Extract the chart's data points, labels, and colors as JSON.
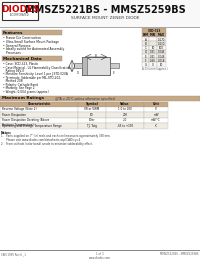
{
  "title_main": "MMSZ5221BS - MMSZ5259BS",
  "subtitle": "SURFACE MOUNT ZENER DIODE",
  "features_title": "Features",
  "features": [
    "Planar Die Construction",
    "Ultra-Small Surface Mount Package",
    "General Purpose",
    "Ideally suited for Automated Assembly\n    Processes"
  ],
  "mech_title": "Mechanical Data",
  "mech_items": [
    "Case: SOD-323, Plastic",
    "Case Material - UL Flammability Classification\n    Rating 94V-0",
    "Moisture Sensitivity: Level 1 per J-STD-020A",
    "Terminals: Solderable per MIL-STD-202,\n    Method 208",
    "Polarity: Cathode Band",
    "Marking: See Page 2",
    "Weight: 0.004 grams (approx.)"
  ],
  "max_ratings_title": "Maximum Ratings",
  "max_ratings_note": "@TA = 25°C unless otherwise specified",
  "max_ratings_headers": [
    "Characteristic",
    "Symbol",
    "Value",
    "Unit"
  ],
  "max_ratings_rows": [
    [
      "Reverse Voltage (Note 2)",
      "VR or VWM",
      "1.0 to 200",
      "V"
    ],
    [
      "Power Dissipation",
      "PD",
      "200",
      "mW"
    ],
    [
      "Power Dissipation Derating (Above Ambient\nTemperature)",
      "PDer",
      "2.0",
      "mW/°C"
    ],
    [
      "Operating and Storage Temperature Range",
      "TJ, Tstg",
      "-65 to +150",
      "°C"
    ]
  ],
  "dim_table_headers": [
    "DIM",
    "MIN",
    "MAX"
  ],
  "dim_table_rows": [
    [
      "A",
      "",
      "0.170"
    ],
    [
      "B",
      "",
      "0.110"
    ],
    [
      "C",
      "10",
      "100 Typical"
    ],
    [
      "D",
      "0.31",
      "0.046"
    ],
    [
      "E",
      "0.41",
      "0.048"
    ],
    [
      "F",
      "0.30",
      "0.018"
    ],
    [
      "G",
      "0",
      "10"
    ]
  ],
  "dim_table_note": "A-G in mm (approx.)",
  "footer_left": "CAN 1999 Rev 6._1",
  "footer_center": "1 of 3\nwww.diodes.com",
  "footer_right": "MMSZ5221BS - MMSZ5259BS",
  "bg_color": "#ffffff",
  "section_title_bg": "#c8a882",
  "table_header_bg": "#c8a882",
  "header_line_color": "#aaaaaa",
  "border_color": "#999999",
  "text_color": "#111111",
  "red_color": "#cc0000",
  "note_text_1": "1.   Parts supplied on 7\" (ie) reels and each reel measures approximately 330 mm.",
  "note_text_1b": "      Please visit www.diodes.com/datasheets asp?CAID=y=4",
  "note_text_2": "2.   From cathode (color band) anode to minimize solderability effect."
}
